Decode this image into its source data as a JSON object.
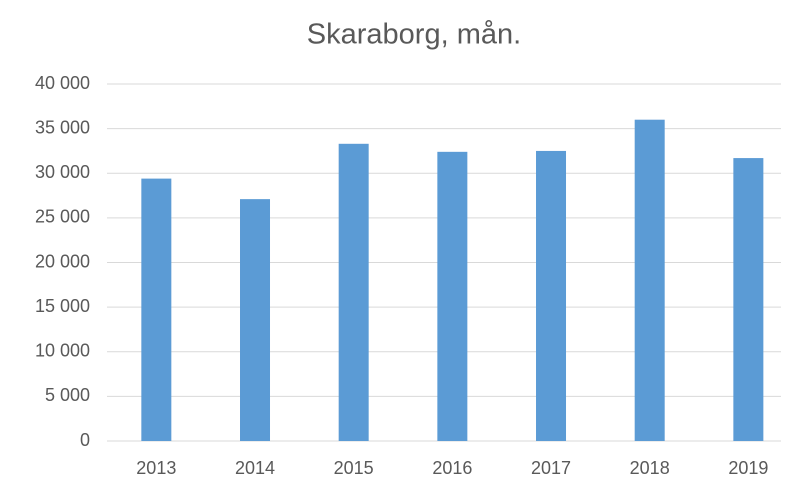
{
  "chart_data": {
    "type": "bar",
    "title": "Skaraborg, mån.",
    "categories": [
      "2013",
      "2014",
      "2015",
      "2016",
      "2017",
      "2018",
      "2019"
    ],
    "values": [
      29400,
      27100,
      33300,
      32400,
      32500,
      36000,
      31700
    ],
    "color": "#5b9bd5",
    "ylim": [
      0,
      40000
    ],
    "yticks": [
      {
        "value": 0,
        "label": "0"
      },
      {
        "value": 5000,
        "label": "5 000"
      },
      {
        "value": 10000,
        "label": "10 000"
      },
      {
        "value": 15000,
        "label": "15 000"
      },
      {
        "value": 20000,
        "label": "20 000"
      },
      {
        "value": 25000,
        "label": "25 000"
      },
      {
        "value": 30000,
        "label": "30 000"
      },
      {
        "value": 35000,
        "label": "35 000"
      },
      {
        "value": 40000,
        "label": "40 000"
      }
    ],
    "grid": true
  }
}
